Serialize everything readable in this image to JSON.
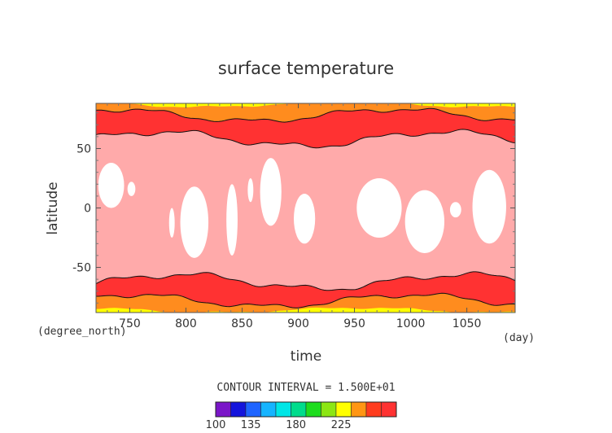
{
  "chart_data": {
    "type": "heatmap",
    "title": "surface temperature",
    "xlabel": "time",
    "ylabel": "latitude",
    "x_unit": "(day)",
    "y_unit": "(degree_north)",
    "xlim": [
      720,
      1093
    ],
    "ylim": [
      -88,
      88
    ],
    "xticks": [
      750,
      800,
      850,
      900,
      950,
      1000,
      1050
    ],
    "yticks": [
      -50,
      0,
      50
    ],
    "contour_interval_text": "CONTOUR INTERVAL = 1.500E+01",
    "colorbar": {
      "levels": [
        100,
        115,
        130,
        145,
        160,
        175,
        190,
        205,
        220,
        235,
        250,
        265,
        280
      ],
      "tick_labels": [
        "100",
        "135",
        "180",
        "225"
      ],
      "colors": [
        "#7a16c8",
        "#1414dc",
        "#1e64ff",
        "#16b4ff",
        "#00e6e6",
        "#00dc8c",
        "#1edc1e",
        "#8ce614",
        "#ffff00",
        "#ff9614",
        "#ff3c1e",
        "#ff3232",
        "#ffaaaa"
      ]
    },
    "band_colors": {
      "warmest": "#ffaaaa",
      "hot": "#ffffff",
      "cold1": "#ff3232",
      "cold2": "#ff8c1e",
      "cold3": "#ffff00"
    }
  }
}
